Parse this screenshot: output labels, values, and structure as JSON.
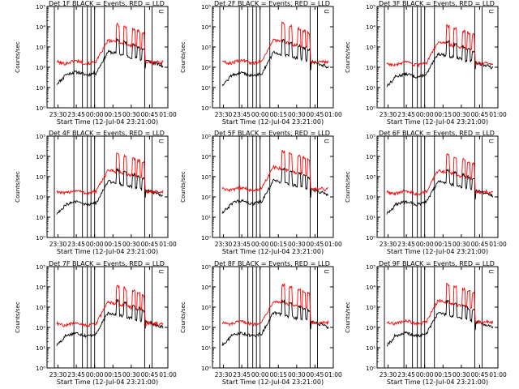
{
  "chart_data": {
    "type": "line",
    "xlabel": "Start Time (12-Jul-04 23:21:00)",
    "ylabel": "Counts/sec",
    "x_ticks": [
      "23:30",
      "23:45",
      "00:00",
      "00:15",
      "00:30",
      "00:45",
      "01:00"
    ],
    "x_range": [
      "23:21",
      "01:00"
    ],
    "y_scale": "log",
    "y_range": [
      1,
      100000
    ],
    "y_ticks": [
      "10⁰",
      "10¹",
      "10²",
      "10³",
      "10⁴",
      "10⁵"
    ],
    "colors": {
      "black_series": "#000000",
      "red_series": "#ff0000"
    },
    "legend_mark": "⊂",
    "panels": [
      {
        "title": "Det 1F BLACK = Events, RED = LLD",
        "red_baseline": 180,
        "black_baseline": 50
      },
      {
        "title": "Det 2F BLACK = Events, RED = LLD",
        "red_baseline": 190,
        "black_baseline": 45
      },
      {
        "title": "Det 3F BLACK = Events, RED = LLD",
        "red_baseline": 150,
        "black_baseline": 40
      },
      {
        "title": "Det 4F BLACK = Events, RED = LLD",
        "red_baseline": 180,
        "black_baseline": 50
      },
      {
        "title": "Det 5F BLACK = Events, RED = LLD",
        "red_baseline": 250,
        "black_baseline": 55
      },
      {
        "title": "Det 6F BLACK = Events, RED = LLD",
        "red_baseline": 170,
        "black_baseline": 50
      },
      {
        "title": "Det 7F BLACK = Events, RED = LLD",
        "red_baseline": 150,
        "black_baseline": 45
      },
      {
        "title": "Det 8F BLACK = Events, RED = LLD",
        "red_baseline": 170,
        "black_baseline": 45
      },
      {
        "title": "Det 9F BLACK = Events, RED = LLD",
        "red_baseline": 180,
        "black_baseline": 45
      }
    ],
    "spike_times": [
      "00:19",
      "00:25",
      "00:32",
      "00:36",
      "00:40"
    ],
    "vertical_markers": [
      "23:27",
      "23:43",
      "23:50",
      "23:54",
      "23:57",
      "00:00",
      "00:08",
      "00:41",
      "00:47"
    ]
  }
}
